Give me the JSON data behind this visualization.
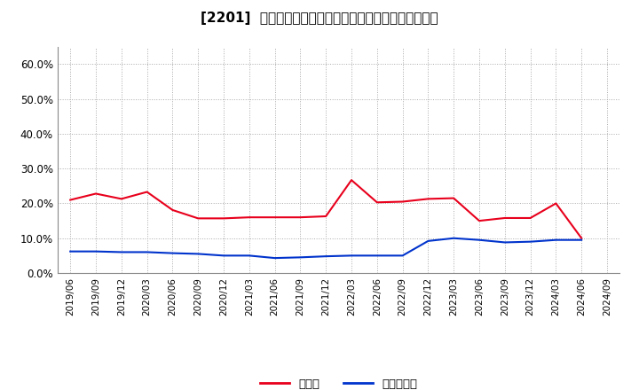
{
  "title": "[2201]  現預金、有利子負債の総資産に対する比率の推移",
  "x_labels": [
    "2019/06",
    "2019/09",
    "2019/12",
    "2020/03",
    "2020/06",
    "2020/09",
    "2020/12",
    "2021/03",
    "2021/06",
    "2021/09",
    "2021/12",
    "2022/03",
    "2022/06",
    "2022/09",
    "2022/12",
    "2023/03",
    "2023/06",
    "2023/09",
    "2023/12",
    "2024/03",
    "2024/06",
    "2024/09"
  ],
  "cash": [
    0.21,
    0.228,
    0.213,
    0.233,
    0.181,
    0.157,
    0.157,
    0.16,
    0.16,
    0.16,
    0.163,
    0.267,
    0.203,
    0.205,
    0.213,
    0.215,
    0.15,
    0.158,
    0.158,
    0.2,
    0.1,
    null
  ],
  "debt": [
    0.062,
    0.062,
    0.06,
    0.06,
    0.057,
    0.055,
    0.05,
    0.05,
    0.043,
    0.045,
    0.048,
    0.05,
    0.05,
    0.05,
    0.092,
    0.1,
    0.095,
    0.088,
    0.09,
    0.095,
    0.095,
    null
  ],
  "cash_color": "#e8001c",
  "debt_color": "#0033cc",
  "legend_cash": "現預金",
  "legend_debt": "有利子負債",
  "ylim": [
    0.0,
    0.65
  ],
  "yticks": [
    0.0,
    0.1,
    0.2,
    0.3,
    0.4,
    0.5,
    0.6
  ],
  "grid_color": "#aaaaaa",
  "bg_color": "#ffffff",
  "plot_bg_color": "#ffffff"
}
